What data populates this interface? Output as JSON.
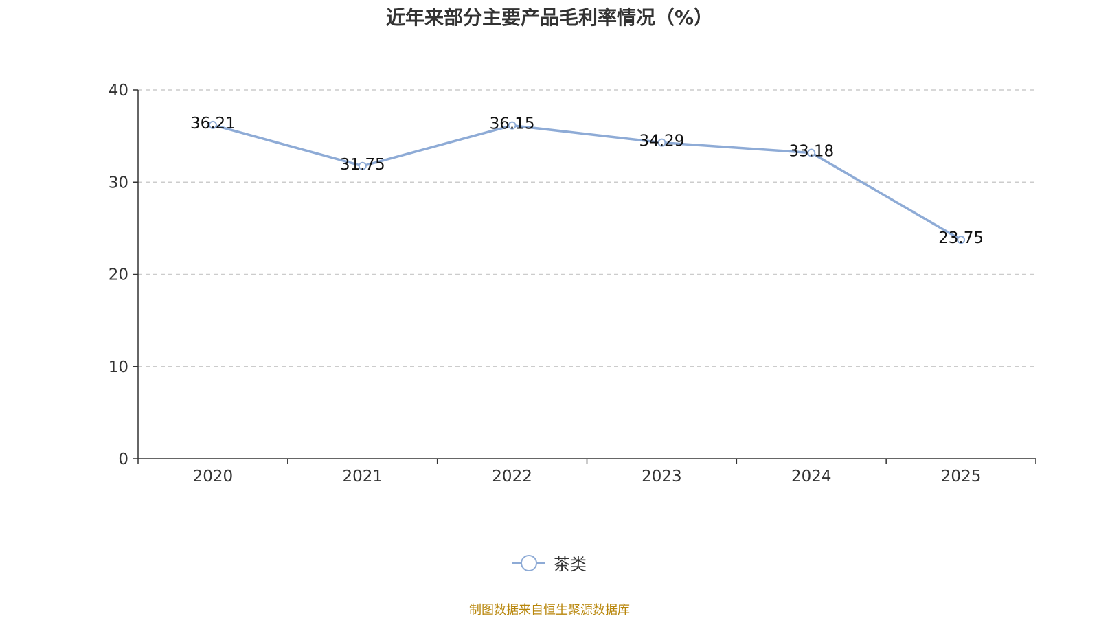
{
  "chart_data": {
    "type": "line",
    "title": "近年来部分主要产品毛利率情况（%）",
    "categories": [
      "2020",
      "2021",
      "2022",
      "2023",
      "2024",
      "2025"
    ],
    "series": [
      {
        "name": "茶类",
        "values": [
          36.21,
          31.75,
          36.15,
          34.29,
          33.18,
          23.75
        ],
        "color": "#8eabd6"
      }
    ],
    "ylim": [
      0,
      40
    ],
    "yticks": [
      "0",
      "10",
      "20",
      "30",
      "40"
    ],
    "grid": true,
    "legend_position": "bottom"
  },
  "source_note": "制图数据来自恒生聚源数据库"
}
